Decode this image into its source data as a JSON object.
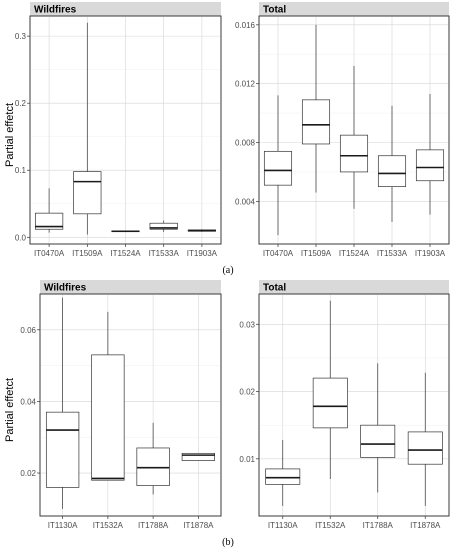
{
  "figure_labels": {
    "a": "(a)",
    "b": "(b)"
  },
  "ylabel": "Partial effetct",
  "chart_data": [
    {
      "type": "box",
      "title": "Wildfires",
      "ylim": [
        -0.01,
        0.33
      ],
      "yticks": [
        0.0,
        0.1,
        0.2,
        0.3
      ],
      "ytick_labels": [
        "0.0",
        "0.1",
        "0.2",
        "0.3"
      ],
      "categories": [
        "IT0470A",
        "IT1509A",
        "IT1524A",
        "IT1533A",
        "IT1903A"
      ],
      "boxes": [
        {
          "min": 0.007,
          "q1": 0.012,
          "median": 0.016,
          "q3": 0.036,
          "max": 0.073
        },
        {
          "min": 0.004,
          "q1": 0.035,
          "median": 0.083,
          "q3": 0.098,
          "max": 0.32
        },
        {
          "min": 0.008,
          "q1": 0.0085,
          "median": 0.009,
          "q3": 0.0095,
          "max": 0.01
        },
        {
          "min": 0.008,
          "q1": 0.012,
          "median": 0.014,
          "q3": 0.021,
          "max": 0.025
        },
        {
          "min": 0.008,
          "q1": 0.009,
          "median": 0.01,
          "q3": 0.011,
          "max": 0.012
        }
      ]
    },
    {
      "type": "box",
      "title": "Total",
      "ylim": [
        0.0011,
        0.0166
      ],
      "yticks": [
        0.004,
        0.008,
        0.012,
        0.016
      ],
      "ytick_labels": [
        "0.004",
        "0.008",
        "0.012",
        "0.016"
      ],
      "categories": [
        "IT0470A",
        "IT1509A",
        "IT1524A",
        "IT1533A",
        "IT1903A"
      ],
      "boxes": [
        {
          "min": 0.0017,
          "q1": 0.0051,
          "median": 0.0061,
          "q3": 0.0074,
          "max": 0.0112
        },
        {
          "min": 0.0046,
          "q1": 0.0079,
          "median": 0.0092,
          "q3": 0.0109,
          "max": 0.016
        },
        {
          "min": 0.0035,
          "q1": 0.006,
          "median": 0.0071,
          "q3": 0.0085,
          "max": 0.0132
        },
        {
          "min": 0.0026,
          "q1": 0.005,
          "median": 0.0059,
          "q3": 0.0071,
          "max": 0.0105
        },
        {
          "min": 0.0031,
          "q1": 0.0054,
          "median": 0.0063,
          "q3": 0.0075,
          "max": 0.0113
        }
      ]
    },
    {
      "type": "box",
      "title": "Wildfires",
      "ylim": [
        0.008,
        0.07
      ],
      "yticks": [
        0.02,
        0.04,
        0.06
      ],
      "ytick_labels": [
        "0.02",
        "0.04",
        "0.06"
      ],
      "categories": [
        "IT1130A",
        "IT1532A",
        "IT1788A",
        "IT1878A"
      ],
      "boxes": [
        {
          "min": 0.01,
          "q1": 0.016,
          "median": 0.032,
          "q3": 0.037,
          "max": 0.069
        },
        {
          "min": 0.018,
          "q1": 0.018,
          "median": 0.0185,
          "q3": 0.053,
          "max": 0.065
        },
        {
          "min": 0.014,
          "q1": 0.0165,
          "median": 0.0215,
          "q3": 0.027,
          "max": 0.034
        },
        {
          "min": 0.0235,
          "q1": 0.0235,
          "median": 0.025,
          "q3": 0.0255,
          "max": 0.0255
        }
      ]
    },
    {
      "type": "box",
      "title": "Total",
      "ylim": [
        0.0015,
        0.0345
      ],
      "yticks": [
        0.01,
        0.02,
        0.03
      ],
      "ytick_labels": [
        "0.01",
        "0.02",
        "0.03"
      ],
      "categories": [
        "IT1130A",
        "IT1532A",
        "IT1788A",
        "IT1878A"
      ],
      "boxes": [
        {
          "min": 0.003,
          "q1": 0.0062,
          "median": 0.0072,
          "q3": 0.0085,
          "max": 0.0128
        },
        {
          "min": 0.007,
          "q1": 0.0146,
          "median": 0.0178,
          "q3": 0.022,
          "max": 0.0335
        },
        {
          "min": 0.005,
          "q1": 0.0102,
          "median": 0.0122,
          "q3": 0.015,
          "max": 0.0242
        },
        {
          "min": 0.003,
          "q1": 0.0092,
          "median": 0.0113,
          "q3": 0.014,
          "max": 0.0228
        }
      ]
    }
  ]
}
